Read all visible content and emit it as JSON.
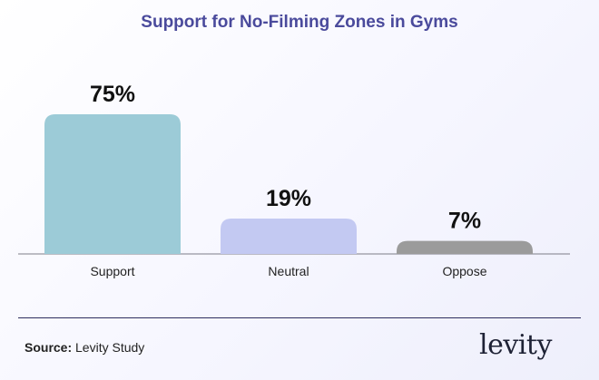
{
  "chart_data": {
    "type": "bar",
    "title": "Support for No-Filming Zones in Gyms",
    "categories": [
      "Support",
      "Neutral",
      "Oppose"
    ],
    "values": [
      75,
      19,
      7
    ],
    "value_labels": [
      "75%",
      "19%",
      "7%"
    ],
    "colors": [
      "#9ccbd7",
      "#c3c9f2",
      "#9b9b9b"
    ],
    "ylim": [
      0,
      75
    ],
    "xlabel": "",
    "ylabel": "",
    "grid": false,
    "legend": "none"
  },
  "footer": {
    "source_label": "Source:",
    "source_text": "Levity Study",
    "logo": "levity"
  },
  "colors": {
    "title": "#4a4a9c",
    "axis": "#7d7d88",
    "divider": "#2e2e5e"
  }
}
